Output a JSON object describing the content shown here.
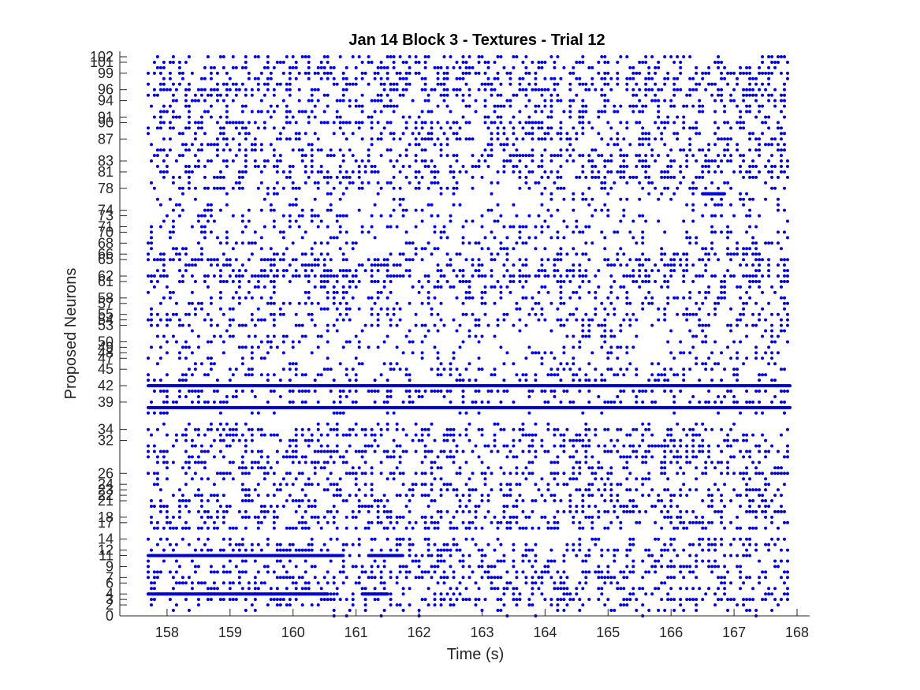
{
  "chart_data": {
    "type": "scatter",
    "title": "Jan 14 Block 3 - Textures - Trial 12",
    "xlabel": "Time (s)",
    "ylabel": "Proposed Neurons",
    "xlim": [
      157.25,
      168.2
    ],
    "ylim": [
      0,
      102
    ],
    "xticks": [
      158,
      159,
      160,
      161,
      162,
      163,
      164,
      165,
      166,
      167,
      168
    ],
    "yticks": [
      0,
      2,
      3,
      4,
      6,
      7,
      9,
      11,
      12,
      14,
      17,
      18,
      21,
      22,
      23,
      24,
      26,
      32,
      34,
      39,
      42,
      45,
      47,
      48,
      49,
      50,
      53,
      54,
      55,
      57,
      58,
      61,
      62,
      65,
      66,
      68,
      70,
      71,
      73,
      74,
      78,
      81,
      83,
      87,
      90,
      91,
      94,
      96,
      99,
      101,
      102
    ],
    "grid": false,
    "legend": "none",
    "marker_color": "#0000d9",
    "time_range": [
      157.7,
      167.9
    ],
    "dense_rows": [
      {
        "neuron": 42,
        "start": 157.7,
        "end": 167.9
      },
      {
        "neuron": 38,
        "start": 157.7,
        "end": 167.9
      },
      {
        "neuron": 11,
        "start": 157.7,
        "end": 160.8
      },
      {
        "neuron": 11,
        "start": 161.2,
        "end": 161.75
      },
      {
        "neuron": 4,
        "start": 157.7,
        "end": 160.55
      },
      {
        "neuron": 4,
        "start": 161.1,
        "end": 161.5
      },
      {
        "neuron": 77,
        "start": 166.5,
        "end": 166.85
      }
    ],
    "row_density": {
      "0": 0.05,
      "1": 0.12,
      "2": 0.25,
      "3": 0.45,
      "4": 0.3,
      "5": 0.35,
      "6": 0.25,
      "7": 0.35,
      "8": 0.35,
      "9": 0.3,
      "10": 0.25,
      "11": 0.3,
      "12": 0.4,
      "13": 0.3,
      "14": 0.25,
      "16": 0.35,
      "17": 0.3,
      "18": 0.35,
      "19": 0.3,
      "20": 0.3,
      "21": 0.25,
      "22": 0.3,
      "23": 0.3,
      "24": 0.3,
      "25": 0.2,
      "26": 0.4,
      "27": 0.25,
      "28": 0.3,
      "29": 0.35,
      "30": 0.3,
      "31": 0.35,
      "32": 0.3,
      "33": 0.3,
      "34": 0.3,
      "35": 0.15,
      "37": 0.15,
      "39": 0.4,
      "40": 0.2,
      "41": 0.4,
      "43": 0.3,
      "44": 0.25,
      "45": 0.2,
      "46": 0.2,
      "47": 0.15,
      "48": 0.15,
      "49": 0.2,
      "50": 0.15,
      "51": 0.2,
      "52": 0.15,
      "53": 0.25,
      "54": 0.3,
      "55": 0.3,
      "56": 0.2,
      "57": 0.25,
      "58": 0.25,
      "59": 0.2,
      "60": 0.25,
      "61": 0.35,
      "62": 0.5,
      "63": 0.3,
      "64": 0.35,
      "65": 0.4,
      "66": 0.3,
      "67": 0.2,
      "68": 0.2,
      "69": 0.15,
      "70": 0.2,
      "71": 0.15,
      "72": 0.15,
      "73": 0.2,
      "74": 0.15,
      "75": 0.15,
      "76": 0.15,
      "77": 0.15,
      "78": 0.3,
      "79": 0.25,
      "80": 0.3,
      "81": 0.3,
      "82": 0.3,
      "83": 0.3,
      "84": 0.3,
      "85": 0.3,
      "86": 0.25,
      "87": 0.3,
      "88": 0.25,
      "89": 0.3,
      "90": 0.4,
      "91": 0.3,
      "92": 0.3,
      "93": 0.3,
      "94": 0.35,
      "95": 0.35,
      "96": 0.4,
      "97": 0.35,
      "98": 0.35,
      "99": 0.4,
      "100": 0.35,
      "101": 0.3,
      "102": 0.3
    }
  }
}
